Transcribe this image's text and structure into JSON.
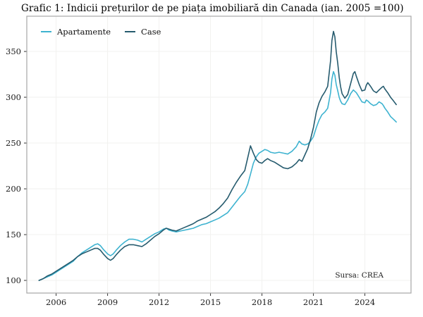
{
  "chart": {
    "title": "Grafic 1: Indicii prețurilor de pe piața imobiliară din Canada (ian. 2005 =100)",
    "source": "Sursa: CREA"
  },
  "chart_data": {
    "type": "line",
    "title": "Grafic 1: Indicii prețurilor de pe piața imobiliară din Canada (ian. 2005 =100)",
    "source": "Sursa: CREA",
    "xlabel": "",
    "ylabel": "",
    "legend_position": "top-left-inside",
    "grid": true,
    "x_domain": [
      2004.29,
      2026.69
    ],
    "y_domain": [
      86.2,
      388.5
    ],
    "x_ticks": [
      {
        "value": 2006,
        "label": "2006"
      },
      {
        "value": 2009,
        "label": "2009"
      },
      {
        "value": 2012,
        "label": "2012"
      },
      {
        "value": 2015,
        "label": "2015"
      },
      {
        "value": 2018,
        "label": "2018"
      },
      {
        "value": 2021,
        "label": "2021"
      },
      {
        "value": 2024,
        "label": "2024"
      }
    ],
    "y_ticks": [
      {
        "value": 100,
        "label": "100"
      },
      {
        "value": 150,
        "label": "150"
      },
      {
        "value": 200,
        "label": "200"
      },
      {
        "value": 250,
        "label": "250"
      },
      {
        "value": 300,
        "label": "300"
      },
      {
        "value": 350,
        "label": "350"
      }
    ],
    "colors": {
      "grid": "#f2f1ef",
      "panel_border": "#a6a6a6",
      "tick": "#333333",
      "tick_label": "#1a1a1a"
    },
    "series": [
      {
        "name": "Apartamente",
        "color": "#3eb3d0",
        "points": [
          [
            2005.0,
            100
          ],
          [
            2005.25,
            102
          ],
          [
            2005.5,
            104
          ],
          [
            2005.75,
            106
          ],
          [
            2006.0,
            109
          ],
          [
            2006.25,
            112
          ],
          [
            2006.5,
            115
          ],
          [
            2006.75,
            118
          ],
          [
            2007.0,
            121
          ],
          [
            2007.25,
            126
          ],
          [
            2007.5,
            130
          ],
          [
            2007.75,
            133
          ],
          [
            2008.0,
            136
          ],
          [
            2008.25,
            139
          ],
          [
            2008.42,
            140
          ],
          [
            2008.58,
            138
          ],
          [
            2008.75,
            134
          ],
          [
            2009.0,
            129
          ],
          [
            2009.17,
            127
          ],
          [
            2009.33,
            129
          ],
          [
            2009.5,
            133
          ],
          [
            2009.75,
            138
          ],
          [
            2010.0,
            142
          ],
          [
            2010.25,
            145
          ],
          [
            2010.5,
            145
          ],
          [
            2010.75,
            144
          ],
          [
            2011.0,
            142
          ],
          [
            2011.25,
            145
          ],
          [
            2011.5,
            148
          ],
          [
            2011.75,
            151
          ],
          [
            2012.0,
            153
          ],
          [
            2012.25,
            156
          ],
          [
            2012.42,
            157
          ],
          [
            2012.58,
            155
          ],
          [
            2012.75,
            154
          ],
          [
            2013.0,
            153
          ],
          [
            2013.25,
            154
          ],
          [
            2013.5,
            155
          ],
          [
            2013.75,
            156
          ],
          [
            2014.0,
            157
          ],
          [
            2014.25,
            159
          ],
          [
            2014.5,
            161
          ],
          [
            2014.75,
            162
          ],
          [
            2015.0,
            164
          ],
          [
            2015.25,
            166
          ],
          [
            2015.5,
            168
          ],
          [
            2015.75,
            171
          ],
          [
            2016.0,
            174
          ],
          [
            2016.25,
            180
          ],
          [
            2016.5,
            186
          ],
          [
            2016.75,
            192
          ],
          [
            2017.0,
            197
          ],
          [
            2017.17,
            205
          ],
          [
            2017.33,
            216
          ],
          [
            2017.5,
            228
          ],
          [
            2017.67,
            235
          ],
          [
            2017.83,
            239
          ],
          [
            2018.0,
            241
          ],
          [
            2018.17,
            243
          ],
          [
            2018.33,
            242
          ],
          [
            2018.5,
            240
          ],
          [
            2018.75,
            239
          ],
          [
            2019.0,
            240
          ],
          [
            2019.25,
            239
          ],
          [
            2019.5,
            238
          ],
          [
            2019.75,
            241
          ],
          [
            2020.0,
            246
          ],
          [
            2020.17,
            252
          ],
          [
            2020.33,
            249
          ],
          [
            2020.5,
            248
          ],
          [
            2020.67,
            249
          ],
          [
            2020.83,
            252
          ],
          [
            2021.0,
            257
          ],
          [
            2021.17,
            267
          ],
          [
            2021.33,
            275
          ],
          [
            2021.5,
            281
          ],
          [
            2021.67,
            284
          ],
          [
            2021.83,
            288
          ],
          [
            2022.0,
            305
          ],
          [
            2022.08,
            320
          ],
          [
            2022.17,
            328
          ],
          [
            2022.25,
            324
          ],
          [
            2022.33,
            314
          ],
          [
            2022.42,
            307
          ],
          [
            2022.5,
            300
          ],
          [
            2022.58,
            296
          ],
          [
            2022.67,
            293
          ],
          [
            2022.83,
            292
          ],
          [
            2023.0,
            297
          ],
          [
            2023.17,
            304
          ],
          [
            2023.33,
            308
          ],
          [
            2023.5,
            305
          ],
          [
            2023.67,
            300
          ],
          [
            2023.83,
            295
          ],
          [
            2024.0,
            294
          ],
          [
            2024.08,
            297
          ],
          [
            2024.17,
            296
          ],
          [
            2024.33,
            293
          ],
          [
            2024.5,
            291
          ],
          [
            2024.67,
            292
          ],
          [
            2024.83,
            295
          ],
          [
            2025.0,
            293
          ],
          [
            2025.08,
            291
          ],
          [
            2025.17,
            288
          ],
          [
            2025.33,
            284
          ],
          [
            2025.5,
            279
          ],
          [
            2025.67,
            276
          ],
          [
            2025.83,
            273
          ]
        ]
      },
      {
        "name": "Case",
        "color": "#265b6e",
        "points": [
          [
            2005.0,
            100
          ],
          [
            2005.25,
            102
          ],
          [
            2005.5,
            105
          ],
          [
            2005.75,
            107
          ],
          [
            2006.0,
            110
          ],
          [
            2006.25,
            113
          ],
          [
            2006.5,
            116
          ],
          [
            2006.75,
            119
          ],
          [
            2007.0,
            122
          ],
          [
            2007.25,
            126
          ],
          [
            2007.5,
            129
          ],
          [
            2007.75,
            131
          ],
          [
            2008.0,
            133
          ],
          [
            2008.25,
            135
          ],
          [
            2008.42,
            135
          ],
          [
            2008.58,
            133
          ],
          [
            2008.75,
            129
          ],
          [
            2009.0,
            124
          ],
          [
            2009.17,
            122
          ],
          [
            2009.33,
            124
          ],
          [
            2009.5,
            128
          ],
          [
            2009.75,
            133
          ],
          [
            2010.0,
            137
          ],
          [
            2010.25,
            139
          ],
          [
            2010.5,
            139
          ],
          [
            2010.75,
            138
          ],
          [
            2011.0,
            137
          ],
          [
            2011.25,
            140
          ],
          [
            2011.5,
            144
          ],
          [
            2011.75,
            148
          ],
          [
            2012.0,
            151
          ],
          [
            2012.25,
            155
          ],
          [
            2012.42,
            157
          ],
          [
            2012.58,
            156
          ],
          [
            2012.75,
            155
          ],
          [
            2013.0,
            154
          ],
          [
            2013.25,
            156
          ],
          [
            2013.5,
            158
          ],
          [
            2013.75,
            160
          ],
          [
            2014.0,
            162
          ],
          [
            2014.25,
            165
          ],
          [
            2014.5,
            167
          ],
          [
            2014.75,
            169
          ],
          [
            2015.0,
            172
          ],
          [
            2015.25,
            175
          ],
          [
            2015.5,
            179
          ],
          [
            2015.75,
            184
          ],
          [
            2016.0,
            190
          ],
          [
            2016.25,
            199
          ],
          [
            2016.5,
            207
          ],
          [
            2016.75,
            214
          ],
          [
            2017.0,
            220
          ],
          [
            2017.17,
            234
          ],
          [
            2017.33,
            247
          ],
          [
            2017.5,
            239
          ],
          [
            2017.67,
            232
          ],
          [
            2017.83,
            229
          ],
          [
            2018.0,
            228
          ],
          [
            2018.17,
            231
          ],
          [
            2018.33,
            233
          ],
          [
            2018.5,
            231
          ],
          [
            2018.75,
            229
          ],
          [
            2019.0,
            226
          ],
          [
            2019.25,
            223
          ],
          [
            2019.5,
            222
          ],
          [
            2019.75,
            224
          ],
          [
            2020.0,
            228
          ],
          [
            2020.17,
            232
          ],
          [
            2020.33,
            230
          ],
          [
            2020.5,
            237
          ],
          [
            2020.67,
            244
          ],
          [
            2020.83,
            254
          ],
          [
            2021.0,
            267
          ],
          [
            2021.17,
            284
          ],
          [
            2021.33,
            294
          ],
          [
            2021.5,
            301
          ],
          [
            2021.67,
            306
          ],
          [
            2021.83,
            312
          ],
          [
            2022.0,
            340
          ],
          [
            2022.08,
            362
          ],
          [
            2022.17,
            372
          ],
          [
            2022.25,
            366
          ],
          [
            2022.33,
            350
          ],
          [
            2022.42,
            337
          ],
          [
            2022.5,
            322
          ],
          [
            2022.58,
            312
          ],
          [
            2022.67,
            304
          ],
          [
            2022.83,
            299
          ],
          [
            2023.0,
            303
          ],
          [
            2023.17,
            315
          ],
          [
            2023.33,
            326
          ],
          [
            2023.42,
            328
          ],
          [
            2023.5,
            323
          ],
          [
            2023.67,
            314
          ],
          [
            2023.83,
            307
          ],
          [
            2024.0,
            308
          ],
          [
            2024.08,
            313
          ],
          [
            2024.17,
            316
          ],
          [
            2024.33,
            312
          ],
          [
            2024.5,
            307
          ],
          [
            2024.67,
            305
          ],
          [
            2024.83,
            308
          ],
          [
            2025.0,
            311
          ],
          [
            2025.08,
            312
          ],
          [
            2025.17,
            309
          ],
          [
            2025.33,
            305
          ],
          [
            2025.5,
            300
          ],
          [
            2025.67,
            296
          ],
          [
            2025.83,
            292
          ]
        ]
      }
    ]
  }
}
